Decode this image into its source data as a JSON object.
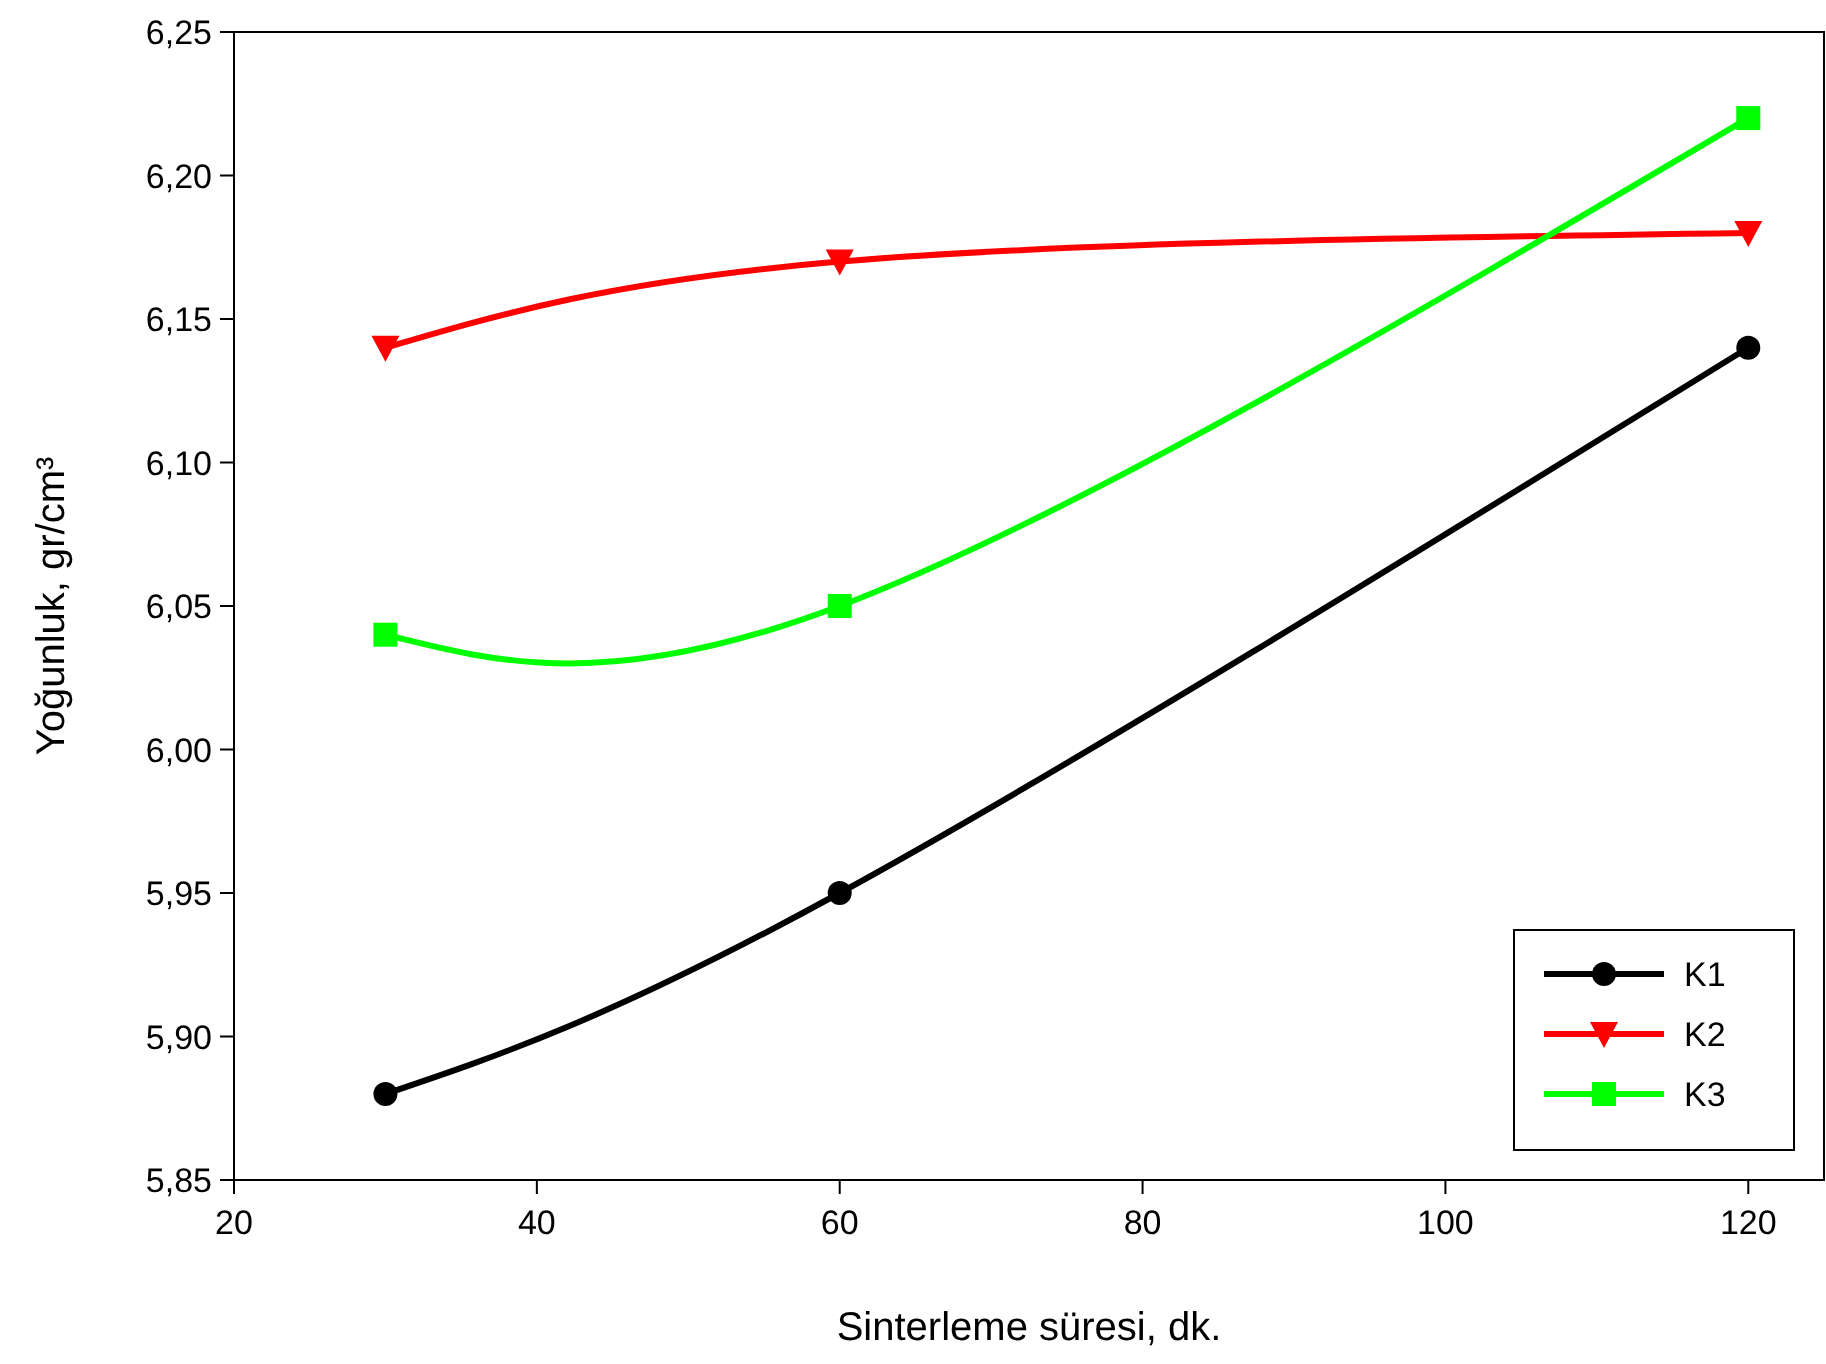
{
  "chart_data": {
    "type": "line",
    "xlabel": "Sinterleme süresi, dk.",
    "ylabel": "Yoğunluk, gr/cm³",
    "x": [
      30,
      60,
      120
    ],
    "xlim": [
      20,
      125
    ],
    "xticks": [
      20,
      40,
      60,
      80,
      100,
      120
    ],
    "ylim": [
      5.85,
      6.25
    ],
    "yticks": [
      {
        "value": 5.85,
        "label": "5,85"
      },
      {
        "value": 5.9,
        "label": "5,90"
      },
      {
        "value": 5.95,
        "label": "5,95"
      },
      {
        "value": 6.0,
        "label": "6,00"
      },
      {
        "value": 6.05,
        "label": "6,05"
      },
      {
        "value": 6.1,
        "label": "6,10"
      },
      {
        "value": 6.15,
        "label": "6,15"
      },
      {
        "value": 6.2,
        "label": "6,20"
      },
      {
        "value": 6.25,
        "label": "6,25"
      }
    ],
    "grid": false,
    "legend": "bottom right",
    "line_style": "solid",
    "series": [
      {
        "name": "K1",
        "color": "#000000",
        "marker": "circle",
        "values": [
          5.88,
          5.95,
          6.14
        ]
      },
      {
        "name": "K2",
        "color": "#ff0000",
        "marker": "triangle",
        "values": [
          6.14,
          6.17,
          6.18
        ]
      },
      {
        "name": "K3",
        "color": "#00ff00",
        "marker": "square",
        "values": [
          6.04,
          6.05,
          6.22
        ]
      }
    ]
  }
}
